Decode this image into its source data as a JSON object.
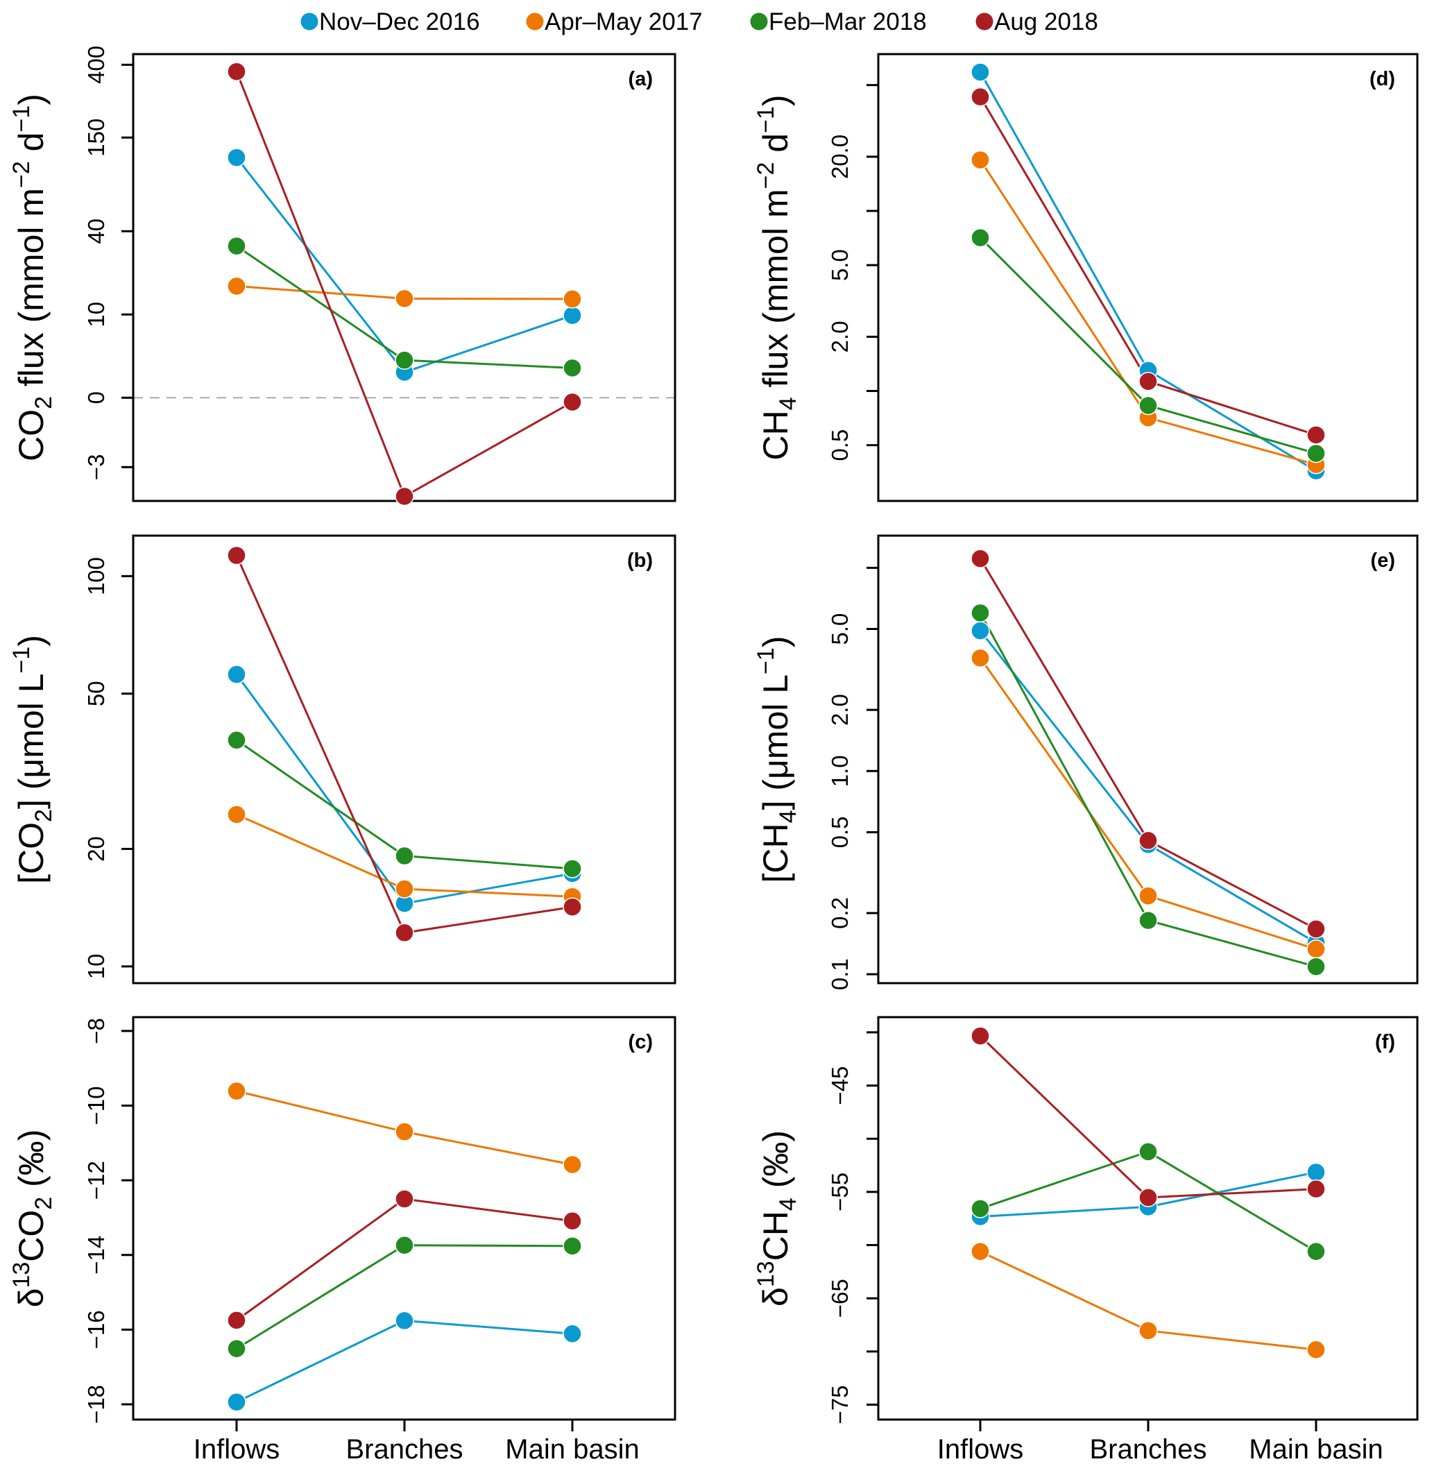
{
  "legend": [
    {
      "label": "Nov–Dec 2016",
      "color": "#0A9AD0"
    },
    {
      "label": "Apr–May 2017",
      "color": "#EE7700"
    },
    {
      "label": "Feb–Mar 2018",
      "color": "#228B22"
    },
    {
      "label": "Aug 2018",
      "color": "#AA1E22"
    }
  ],
  "categories": [
    "Inflows",
    "Branches",
    "Main basin"
  ],
  "chart_data": [
    {
      "id": "a",
      "type": "line",
      "panel_label": "(a)",
      "ylabel": {
        "pre": "CO",
        "sub": "2",
        "post": " flux (mmol m",
        "sup1": "−2",
        "mid": " d",
        "sup2": "−1",
        "end": ")"
      },
      "scale": "log10(x+5)",
      "ylim": [
        -3.72,
        461
      ],
      "ticks": [
        {
          "v": 400,
          "label": "400"
        },
        {
          "v": 150,
          "label": "150"
        },
        {
          "v": 40,
          "label": "40"
        },
        {
          "v": 10,
          "label": "10"
        },
        {
          "v": 0,
          "label": "0"
        },
        {
          "v": -3,
          "label": "−3"
        }
      ],
      "reference_line": 0,
      "categories": [
        "Inflows",
        "Branches",
        "Main basin"
      ],
      "series": [
        {
          "name": "Nov–Dec 2016",
          "values": [
            114,
            2.0,
            9.8
          ]
        },
        {
          "name": "Apr–May 2017",
          "values": [
            16.8,
            13.5,
            13.4
          ]
        },
        {
          "name": "Feb–Mar 2018",
          "values": [
            32,
            3.2,
            2.4
          ]
        },
        {
          "name": "Aug 2018",
          "values": [
            365,
            -3.64,
            -0.28
          ]
        }
      ]
    },
    {
      "id": "b",
      "type": "line",
      "panel_label": "(b)",
      "ylabel": {
        "pre": "[CO",
        "sub": "2",
        "post": "] (μmol L",
        "sup1": "−1",
        "mid": "",
        "sup2": "",
        "end": ")"
      },
      "scale": "log10",
      "ylim": [
        9.06,
        127
      ],
      "ticks": [
        {
          "v": 100,
          "label": "100"
        },
        {
          "v": 50,
          "label": "50"
        },
        {
          "v": 20,
          "label": "20"
        },
        {
          "v": 10,
          "label": "10"
        }
      ],
      "categories": [
        "Inflows",
        "Branches",
        "Main basin"
      ],
      "series": [
        {
          "name": "Nov–Dec 2016",
          "values": [
            56,
            14.5,
            17.3
          ]
        },
        {
          "name": "Apr–May 2017",
          "values": [
            24.5,
            15.8,
            15.1
          ]
        },
        {
          "name": "Feb–Mar 2018",
          "values": [
            38,
            19.2,
            17.8
          ]
        },
        {
          "name": "Aug 2018",
          "values": [
            113,
            12.2,
            14.2
          ]
        }
      ]
    },
    {
      "id": "c",
      "type": "line",
      "panel_label": "(c)",
      "ylabel": {
        "pre": "δ",
        "sup0": "13",
        "pre2": "CO",
        "sub": "2",
        "post": " (‰)"
      },
      "scale": "linear",
      "ylim": [
        -18.41,
        -7.63
      ],
      "ticks": [
        {
          "v": -8,
          "label": "−8"
        },
        {
          "v": -10,
          "label": "−10"
        },
        {
          "v": -12,
          "label": "−12"
        },
        {
          "v": -14,
          "label": "−14"
        },
        {
          "v": -16,
          "label": "−16"
        },
        {
          "v": -18,
          "label": "−18"
        }
      ],
      "categories": [
        "Inflows",
        "Branches",
        "Main basin"
      ],
      "series": [
        {
          "name": "Nov–Dec 2016",
          "values": [
            -17.94,
            -15.76,
            -16.11
          ]
        },
        {
          "name": "Apr–May 2017",
          "values": [
            -9.61,
            -10.7,
            -11.58
          ]
        },
        {
          "name": "Feb–Mar 2018",
          "values": [
            -16.51,
            -13.74,
            -13.76
          ]
        },
        {
          "name": "Aug 2018",
          "values": [
            -15.75,
            -12.5,
            -13.09
          ]
        }
      ]
    },
    {
      "id": "d",
      "type": "line",
      "panel_label": "(d)",
      "ylabel": {
        "pre": "CH",
        "sub": "4",
        "post": " flux (mmol m",
        "sup1": "−2",
        "mid": " d",
        "sup2": "−1",
        "end": ")"
      },
      "scale": "log10",
      "ylim": [
        0.245,
        74.3
      ],
      "ticks": [
        {
          "v": 50,
          "label": ""
        },
        {
          "v": 20,
          "label": "20.0"
        },
        {
          "v": 10,
          "label": ""
        },
        {
          "v": 5,
          "label": "5.0"
        },
        {
          "v": 2,
          "label": "2.0"
        },
        {
          "v": 1,
          "label": ""
        },
        {
          "v": 0.5,
          "label": "0.5"
        }
      ],
      "categories": [
        "Inflows",
        "Branches",
        "Main basin"
      ],
      "series": [
        {
          "name": "Nov–Dec 2016",
          "values": [
            59,
            1.3,
            0.36
          ]
        },
        {
          "name": "Apr–May 2017",
          "values": [
            19.2,
            0.71,
            0.39
          ]
        },
        {
          "name": "Feb–Mar 2018",
          "values": [
            7.1,
            0.83,
            0.45
          ]
        },
        {
          "name": "Aug 2018",
          "values": [
            43,
            1.13,
            0.57
          ]
        }
      ]
    },
    {
      "id": "e",
      "type": "line",
      "panel_label": "(e)",
      "ylabel": {
        "pre": "[CH",
        "sub": "4",
        "post": "] (μmol L",
        "sup1": "−1",
        "mid": "",
        "sup2": "",
        "end": ")"
      },
      "scale": "log10",
      "ylim": [
        0.0904,
        14.4
      ],
      "ticks": [
        {
          "v": 10,
          "label": ""
        },
        {
          "v": 5,
          "label": "5.0"
        },
        {
          "v": 2,
          "label": "2.0"
        },
        {
          "v": 1,
          "label": "1.0"
        },
        {
          "v": 0.5,
          "label": "0.5"
        },
        {
          "v": 0.2,
          "label": "0.2"
        },
        {
          "v": 0.1,
          "label": "0.1"
        }
      ],
      "categories": [
        "Inflows",
        "Branches",
        "Main basin"
      ],
      "series": [
        {
          "name": "Nov–Dec 2016",
          "values": [
            4.9,
            0.435,
            0.143
          ]
        },
        {
          "name": "Apr–May 2017",
          "values": [
            3.6,
            0.243,
            0.133
          ]
        },
        {
          "name": "Feb–Mar 2018",
          "values": [
            6.0,
            0.184,
            0.109
          ]
        },
        {
          "name": "Aug 2018",
          "values": [
            11.1,
            0.455,
            0.167
          ]
        }
      ]
    },
    {
      "id": "f",
      "type": "line",
      "panel_label": "(f)",
      "ylabel": {
        "pre": "δ",
        "sup0": "13",
        "pre2": "CH",
        "sub": "4",
        "post": " (‰)"
      },
      "scale": "linear",
      "ylim": [
        -76.4,
        -38.57
      ],
      "ticks": [
        {
          "v": -40,
          "label": ""
        },
        {
          "v": -45,
          "label": "−45"
        },
        {
          "v": -50,
          "label": ""
        },
        {
          "v": -55,
          "label": "−55"
        },
        {
          "v": -60,
          "label": ""
        },
        {
          "v": -65,
          "label": "−65"
        },
        {
          "v": -70,
          "label": ""
        },
        {
          "v": -75,
          "label": "−75"
        }
      ],
      "categories": [
        "Inflows",
        "Branches",
        "Main basin"
      ],
      "series": [
        {
          "name": "Nov–Dec 2016",
          "values": [
            -57.32,
            -56.4,
            -53.15
          ]
        },
        {
          "name": "Apr–May 2017",
          "values": [
            -60.6,
            -68.04,
            -69.83
          ]
        },
        {
          "name": "Feb–Mar 2018",
          "values": [
            -56.57,
            -51.22,
            -60.6
          ]
        },
        {
          "name": "Aug 2018",
          "values": [
            -40.34,
            -55.53,
            -54.72
          ]
        }
      ]
    }
  ]
}
